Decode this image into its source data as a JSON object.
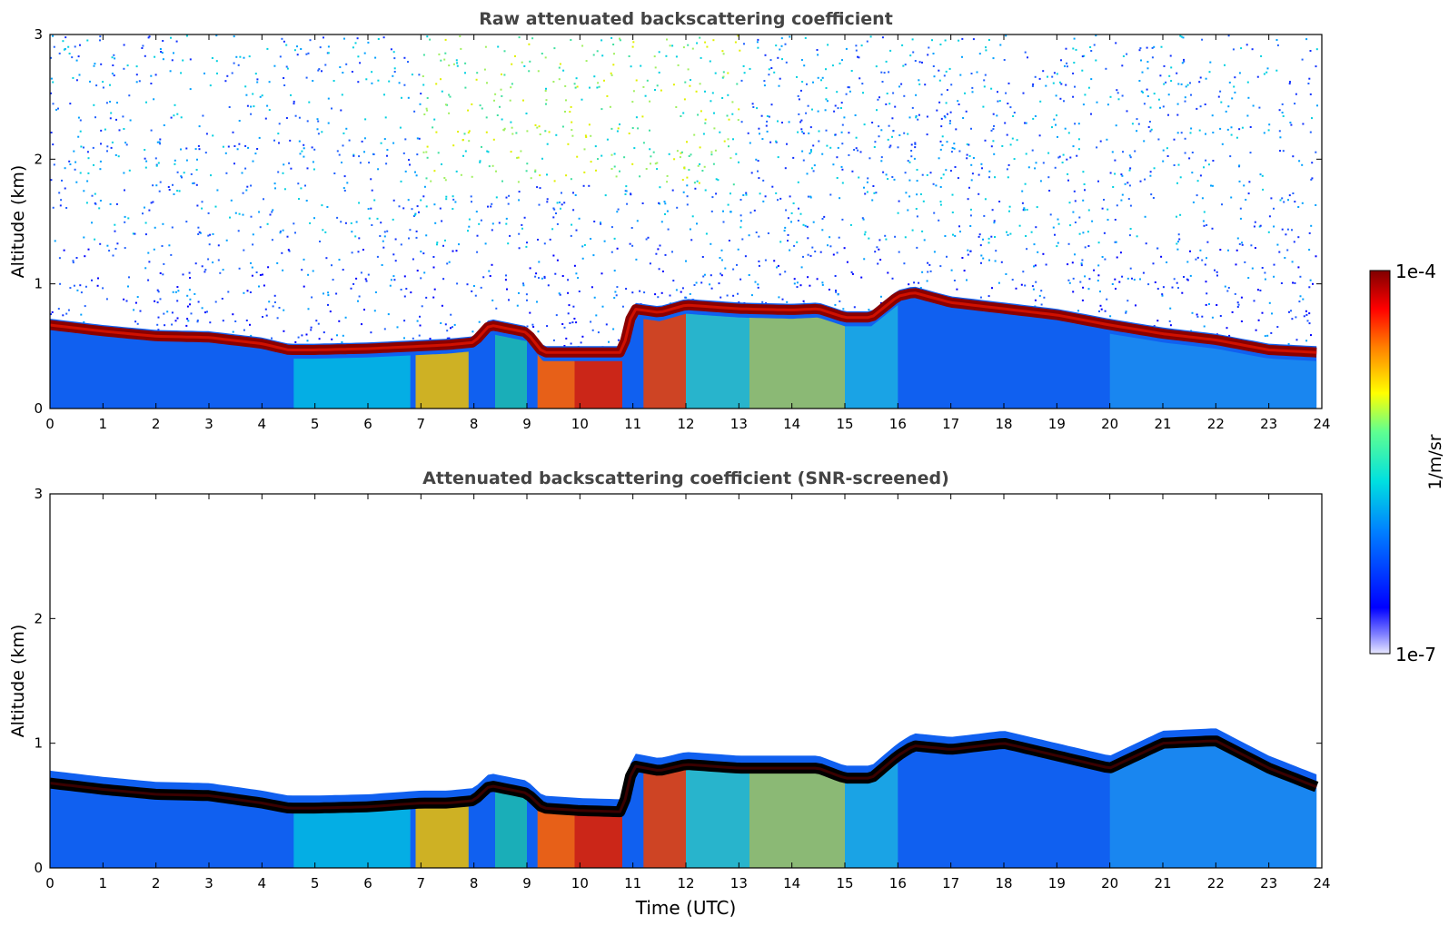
{
  "figure": {
    "xlabel": "Time (UTC)",
    "colorbar": {
      "label": "1/m/sr",
      "max_label": "1e-4",
      "min_label": "1e-7"
    }
  },
  "chart_data": [
    {
      "type": "heatmap",
      "title": "Raw attenuated backscattering coefficient",
      "xlabel": "",
      "ylabel": "Altitude (km)",
      "xlim": [
        0,
        24
      ],
      "ylim": [
        0,
        3
      ],
      "xticks": [
        "0",
        "1",
        "2",
        "3",
        "4",
        "5",
        "6",
        "7",
        "8",
        "9",
        "10",
        "11",
        "12",
        "13",
        "14",
        "15",
        "16",
        "17",
        "18",
        "19",
        "20",
        "21",
        "22",
        "23",
        "24"
      ],
      "yticks": [
        "0",
        "1",
        "2",
        "3"
      ],
      "colorscale": "jet",
      "clim": [
        "1e-7",
        "1e-4"
      ],
      "log_scale_color": true,
      "noise_above_layer": true,
      "layer_top_km": [
        [
          0,
          0.72
        ],
        [
          1,
          0.67
        ],
        [
          2,
          0.63
        ],
        [
          3,
          0.62
        ],
        [
          4,
          0.57
        ],
        [
          4.5,
          0.52
        ],
        [
          5,
          0.52
        ],
        [
          6,
          0.53
        ],
        [
          7,
          0.55
        ],
        [
          7.5,
          0.56
        ],
        [
          8,
          0.58
        ],
        [
          8.3,
          0.72
        ],
        [
          9,
          0.66
        ],
        [
          9.3,
          0.5
        ],
        [
          10,
          0.5
        ],
        [
          10.8,
          0.5
        ],
        [
          11,
          0.85
        ],
        [
          11.5,
          0.82
        ],
        [
          12,
          0.88
        ],
        [
          13,
          0.85
        ],
        [
          14,
          0.84
        ],
        [
          14.5,
          0.85
        ],
        [
          15,
          0.78
        ],
        [
          15.5,
          0.78
        ],
        [
          16,
          0.95
        ],
        [
          16.3,
          0.98
        ],
        [
          17,
          0.9
        ],
        [
          18,
          0.85
        ],
        [
          19,
          0.8
        ],
        [
          20,
          0.72
        ],
        [
          21,
          0.65
        ],
        [
          22,
          0.6
        ],
        [
          23,
          0.52
        ],
        [
          23.9,
          0.5
        ]
      ]
    },
    {
      "type": "heatmap",
      "title": "Attenuated backscattering coefficient (SNR-screened)",
      "xlabel": "Time (UTC)",
      "ylabel": "Altitude (km)",
      "xlim": [
        0,
        24
      ],
      "ylim": [
        0,
        3
      ],
      "xticks": [
        "0",
        "1",
        "2",
        "3",
        "4",
        "5",
        "6",
        "7",
        "8",
        "9",
        "10",
        "11",
        "12",
        "13",
        "14",
        "15",
        "16",
        "17",
        "18",
        "19",
        "20",
        "21",
        "22",
        "23",
        "24"
      ],
      "yticks": [
        "0",
        "1",
        "2",
        "3"
      ],
      "colorscale": "jet",
      "clim": [
        "1e-7",
        "1e-4"
      ],
      "log_scale_color": true,
      "noise_above_layer": false,
      "layer_top_km": [
        [
          0,
          0.78
        ],
        [
          1,
          0.73
        ],
        [
          2,
          0.69
        ],
        [
          3,
          0.68
        ],
        [
          4,
          0.62
        ],
        [
          4.5,
          0.58
        ],
        [
          5,
          0.58
        ],
        [
          6,
          0.59
        ],
        [
          7,
          0.62
        ],
        [
          7.5,
          0.62
        ],
        [
          8,
          0.64
        ],
        [
          8.3,
          0.76
        ],
        [
          9,
          0.7
        ],
        [
          9.3,
          0.58
        ],
        [
          10,
          0.56
        ],
        [
          10.8,
          0.55
        ],
        [
          11,
          0.92
        ],
        [
          11.5,
          0.88
        ],
        [
          12,
          0.93
        ],
        [
          13,
          0.9
        ],
        [
          14,
          0.9
        ],
        [
          14.5,
          0.9
        ],
        [
          15,
          0.82
        ],
        [
          15.5,
          0.82
        ],
        [
          16,
          1.0
        ],
        [
          16.3,
          1.08
        ],
        [
          17,
          1.05
        ],
        [
          18,
          1.1
        ],
        [
          19,
          1.0
        ],
        [
          20,
          0.9
        ],
        [
          21,
          1.1
        ],
        [
          22,
          1.12
        ],
        [
          23,
          0.9
        ],
        [
          23.9,
          0.75
        ]
      ]
    }
  ]
}
